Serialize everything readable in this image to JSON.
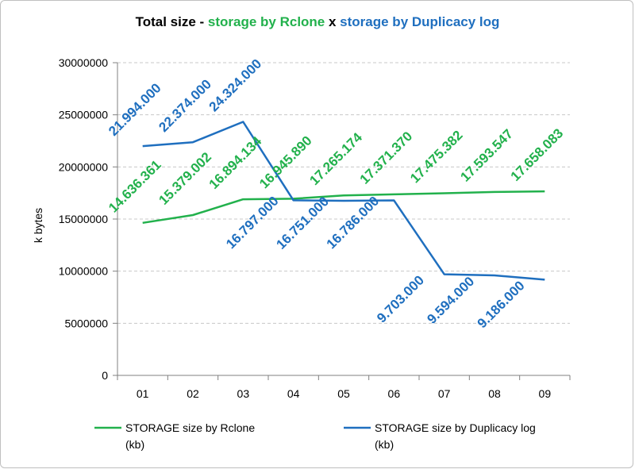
{
  "chart_data": {
    "type": "line",
    "title_parts": [
      {
        "text": "Total size - ",
        "color": "#000000"
      },
      {
        "text": "storage by Rclone",
        "color": "#22b14c"
      },
      {
        "text": " x ",
        "color": "#000000"
      },
      {
        "text": "storage by Duplicacy log",
        "color": "#1f6fbf"
      }
    ],
    "xlabel": "",
    "ylabel": "k bytes",
    "categories": [
      "01",
      "02",
      "03",
      "04",
      "05",
      "06",
      "07",
      "08",
      "09"
    ],
    "ylim": [
      0,
      30000000
    ],
    "yticks": [
      0,
      5000000,
      10000000,
      15000000,
      20000000,
      25000000,
      30000000
    ],
    "ytick_labels": [
      "0",
      "5000000",
      "10000000",
      "15000000",
      "20000000",
      "25000000",
      "30000000"
    ],
    "grid": true,
    "legend_position": "bottom",
    "series": [
      {
        "name_lines": [
          "STORAGE size by Rclone",
          "(kb)"
        ],
        "color": "#22b14c",
        "label_position": "above",
        "values": [
          14636361,
          15379002,
          16894134,
          16945890,
          17265174,
          17371370,
          17475382,
          17593547,
          17658083
        ],
        "labels": [
          "14.636.361",
          "15.379.002",
          "16.894.134",
          "16.945.890",
          "17.265.174",
          "17.371.370",
          "17.475.382",
          "17.593.547",
          "17.658.083"
        ]
      },
      {
        "name_lines": [
          "STORAGE size by Duplicacy log",
          "(kb)"
        ],
        "color": "#1f6fbf",
        "label_position_pattern": [
          "above",
          "above",
          "above",
          "below",
          "below",
          "below",
          "below",
          "below",
          "below"
        ],
        "values": [
          21994000,
          22374000,
          24324000,
          16797000,
          16751000,
          16786000,
          9703000,
          9594000,
          9186000
        ],
        "labels": [
          "21.994.000",
          "22.374.000",
          "24.324.000",
          "16.797.000",
          "16.751.000",
          "16.786.000",
          "9.703.000",
          "9.594.000",
          "9.186.000"
        ]
      }
    ]
  }
}
